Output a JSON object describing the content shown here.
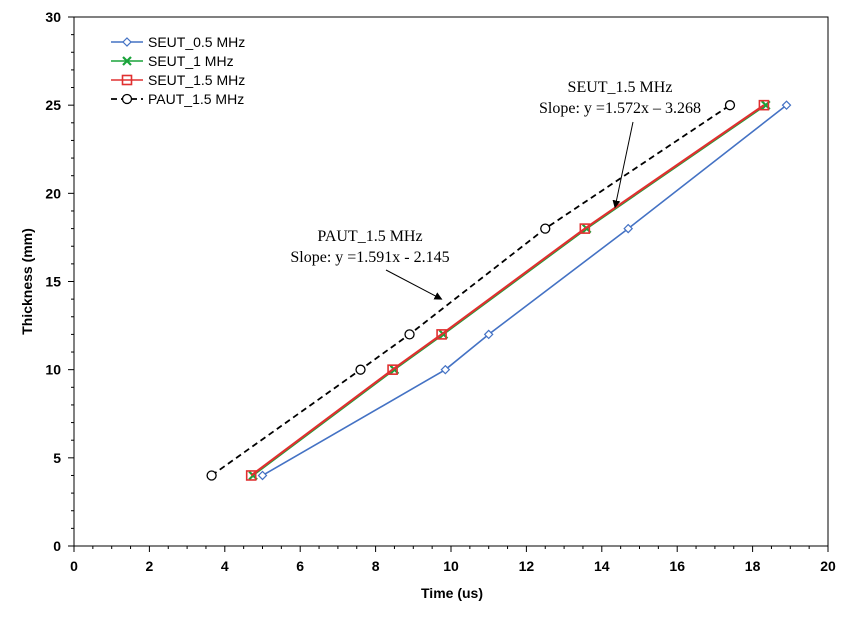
{
  "chart_data": {
    "type": "line",
    "xlabel": "Time (us)",
    "ylabel": "Thickness (mm)",
    "xlim": [
      0,
      20
    ],
    "ylim": [
      0,
      30
    ],
    "xticks": [
      "0",
      "2",
      "4",
      "6",
      "8",
      "10",
      "12",
      "14",
      "16",
      "18",
      "20"
    ],
    "yticks": [
      "0",
      "5",
      "10",
      "15",
      "20",
      "25",
      "30"
    ],
    "grid": false,
    "legend_position": "top-left",
    "series": [
      {
        "name": "SEUT_0.5 MHz",
        "color": "#4472c4",
        "marker": "diamond",
        "line": "solid",
        "x": [
          5.0,
          9.85,
          11.0,
          14.7,
          18.9
        ],
        "y": [
          4,
          10,
          12,
          18,
          25
        ]
      },
      {
        "name": "SEUT_1 MHz",
        "color": "#1aa33a",
        "marker": "x",
        "line": "solid",
        "x": [
          4.75,
          8.5,
          9.8,
          13.6,
          18.35
        ],
        "y": [
          4,
          10,
          12,
          18,
          25
        ]
      },
      {
        "name": "SEUT_1.5 MHz",
        "color": "#e03030",
        "marker": "square",
        "line": "solid",
        "x": [
          4.7,
          8.45,
          9.75,
          13.55,
          18.3
        ],
        "y": [
          4,
          10,
          12,
          18,
          25
        ]
      },
      {
        "name": "PAUT_1.5 MHz",
        "color": "#000000",
        "marker": "circle",
        "line": "dashed",
        "x": [
          3.65,
          7.6,
          8.9,
          12.5,
          17.4
        ],
        "y": [
          4,
          10,
          12,
          18,
          25
        ]
      }
    ],
    "annotations": [
      {
        "name": "paut",
        "line1": "PAUT_1.5 MHz",
        "line2": "Slope: y =1.591x - 2.145",
        "points_to": [
          9.75,
          14.0
        ]
      },
      {
        "name": "seut",
        "line1": "SEUT_1.5 MHz",
        "line2": "Slope: y =1.572x – 3.268",
        "points_to": [
          14.35,
          19.2
        ]
      }
    ]
  }
}
